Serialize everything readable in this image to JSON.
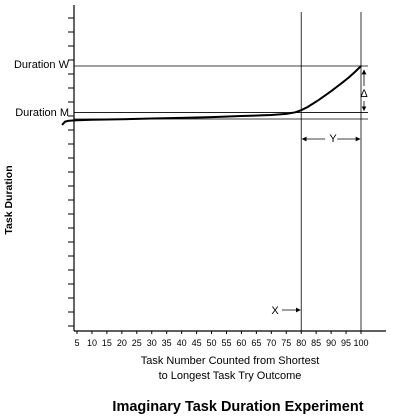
{
  "chart_data": {
    "type": "line",
    "title": "Imaginary Task Duration Experiment",
    "xlabel_line1": "Task Number Counted from Shortest",
    "xlabel_line2": "to Longest Task Try Outcome",
    "ylabel": "Task Duration",
    "xticks": [
      5,
      10,
      15,
      20,
      25,
      30,
      35,
      40,
      45,
      50,
      55,
      60,
      65,
      70,
      75,
      80,
      85,
      90,
      95,
      100
    ],
    "xlim": [
      0,
      100
    ],
    "ylim": [
      0,
      100
    ],
    "y_minor_tick_count": 23,
    "series": [
      {
        "x": [
          0,
          1,
          2,
          4,
          10,
          20,
          30,
          40,
          50,
          60,
          70,
          75,
          78,
          80,
          82,
          84,
          86,
          88,
          90,
          92,
          94,
          96,
          98,
          100
        ],
        "y": [
          77,
          78.2,
          78.5,
          78.7,
          78.9,
          79.1,
          79.4,
          79.6,
          79.9,
          80.3,
          80.7,
          81.1,
          81.7,
          82.5,
          83.6,
          85.0,
          86.4,
          88.0,
          89.6,
          91.3,
          93.0,
          94.8,
          96.8,
          99
        ]
      }
    ],
    "annotations": {
      "duration_w": "Duration W",
      "duration_m": "Duration M",
      "delta": "Δ",
      "x_marker": "X",
      "y_span": "Y"
    },
    "reference_lines": {
      "duration_w_value": 99,
      "duration_m_value": 81.6,
      "baseline_value": 79.2,
      "x_marker_value": 80,
      "end_marker_value": 100
    }
  }
}
